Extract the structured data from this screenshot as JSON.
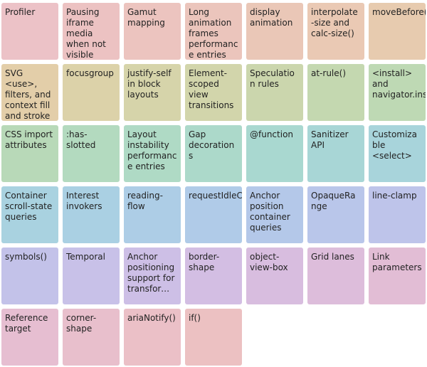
{
  "features": [
    {
      "label": "Profiler",
      "color": "#ecc2c7"
    },
    {
      "label": "Pausing iframe media when not visible",
      "color": "#ecc2c2"
    },
    {
      "label": "Gamut mapping",
      "color": "#ecc4bf"
    },
    {
      "label": "Long animation frames performance entries",
      "color": "#ebc5bc"
    },
    {
      "label": "display animation",
      "color": "#eac7b7"
    },
    {
      "label": "interpolate-size and calc-size()",
      "color": "#eac9b4"
    },
    {
      "label": "moveBefore()",
      "color": "#e7cbaf"
    },
    {
      "label": "SVG <use>, filters, and context fill and stroke interop",
      "color": "#e3cea9"
    },
    {
      "label": "focusgroup",
      "color": "#dcd2a9"
    },
    {
      "label": "justify-self in block layouts",
      "color": "#d6d4aa"
    },
    {
      "label": "Element-scoped view transitions",
      "color": "#d2d5ab"
    },
    {
      "label": "Speculation rules",
      "color": "#cbd6ad"
    },
    {
      "label": "at-rule()",
      "color": "#c4d8b0"
    },
    {
      "label": "<install> and navigator.install",
      "color": "#bed9b4"
    },
    {
      "label": "CSS import attributes",
      "color": "#b8d9b8"
    },
    {
      "label": ":has-slotted",
      "color": "#b3dabf"
    },
    {
      "label": "Layout instability performance entries",
      "color": "#afdac5"
    },
    {
      "label": "Gap decorations",
      "color": "#acd9ca"
    },
    {
      "label": "@function",
      "color": "#a9d8d0"
    },
    {
      "label": "Sanitizer API",
      "color": "#a8d6d6"
    },
    {
      "label": "Customizable <select>",
      "color": "#a8d4db"
    },
    {
      "label": "Container scroll-state queries",
      "color": "#a9d2e0"
    },
    {
      "label": "Interest invokers",
      "color": "#aad0e3"
    },
    {
      "label": "reading-flow",
      "color": "#adcde6"
    },
    {
      "label": "requestIdleCallback",
      "color": "#b0cbe8"
    },
    {
      "label": "Anchor position container queries",
      "color": "#b4c8e9"
    },
    {
      "label": "OpaqueRange",
      "color": "#b9c6ea"
    },
    {
      "label": "line-clamp",
      "color": "#bec4ea"
    },
    {
      "label": "symbols()",
      "color": "#c3c2e9"
    },
    {
      "label": "Temporal",
      "color": "#c8c1e8"
    },
    {
      "label": "Anchor positioning support for transforms, ...",
      "color": "#cdbfe6"
    },
    {
      "label": "border-shape",
      "color": "#d3bee3"
    },
    {
      "label": "object-view-box",
      "color": "#d8bddf"
    },
    {
      "label": "Grid lanes",
      "color": "#ddbddb"
    },
    {
      "label": "Link parameters",
      "color": "#e2bdd5"
    },
    {
      "label": "Reference target",
      "color": "#e6bed1"
    },
    {
      "label": "corner-shape",
      "color": "#e8bfcc"
    },
    {
      "label": "ariaNotify()",
      "color": "#ebc0c7"
    },
    {
      "label": "if()",
      "color": "#ecc1c2"
    }
  ]
}
